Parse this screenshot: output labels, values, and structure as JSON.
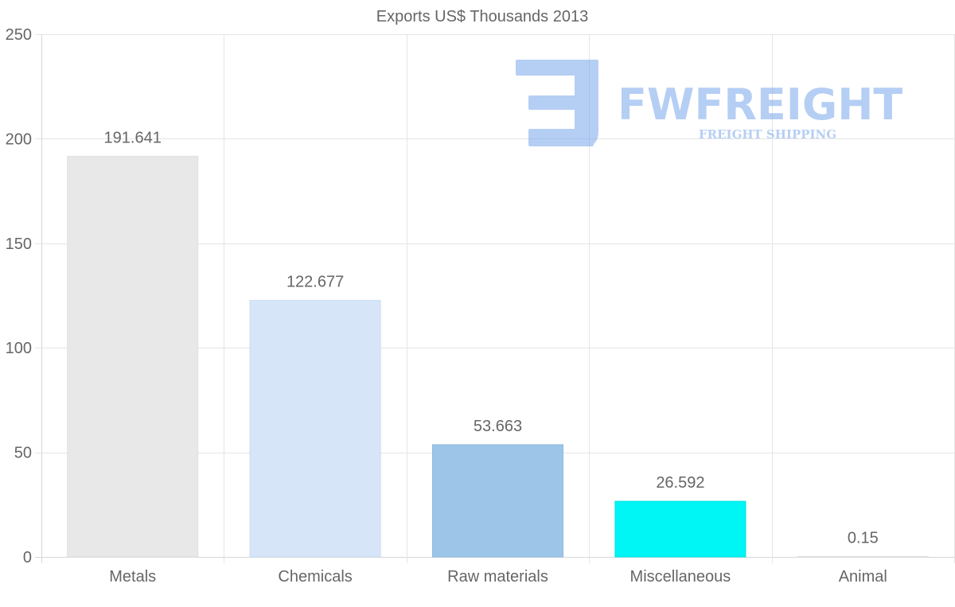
{
  "chart_data": {
    "type": "bar",
    "title": "Exports US$ Thousands 2013",
    "categories": [
      "Metals",
      "Chemicals",
      "Raw materials",
      "Miscellaneous",
      "Animal"
    ],
    "values": [
      191.641,
      122.677,
      53.663,
      26.592,
      0.15
    ],
    "value_labels": [
      "191.641",
      "122.677",
      "53.663",
      "26.592",
      "0.15"
    ],
    "colors": [
      "#e8e8e8",
      "#d6e6f8",
      "#9cc5e8",
      "#00f5f5",
      "#f0f0f0"
    ],
    "border_colors": [
      "#e0e0e0",
      "#c9dcf3",
      "#8ebbe2",
      "#00e2e2",
      "#e0e0e0"
    ],
    "ylim": [
      0,
      250
    ],
    "yticks": [
      0,
      50,
      100,
      150,
      200,
      250
    ],
    "xlabel": "",
    "ylabel": "",
    "grid": true,
    "legend": "none"
  },
  "watermark": {
    "brand": "FWFREIGHT",
    "tagline": "FREIGHT SHIPPING",
    "color": "#6d9eeb"
  }
}
